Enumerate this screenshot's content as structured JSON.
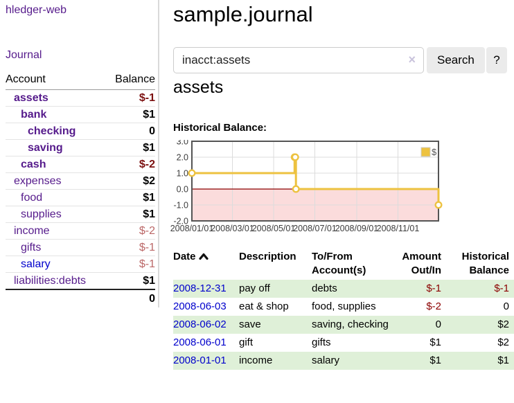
{
  "app": {
    "title": "hledger-web",
    "nav_journal_label": "Journal"
  },
  "sidebar": {
    "table_headers": {
      "account": "Account",
      "balance": "Balance"
    },
    "accounts": [
      {
        "name": "assets",
        "depth": 0,
        "balance": "$-1",
        "bold": true,
        "negative": true
      },
      {
        "name": "bank",
        "depth": 1,
        "balance": "$1",
        "bold": true
      },
      {
        "name": "checking",
        "depth": 2,
        "balance": "0",
        "bold": true
      },
      {
        "name": "saving",
        "depth": 2,
        "balance": "$1",
        "bold": true
      },
      {
        "name": "cash",
        "depth": 1,
        "balance": "$-2",
        "bold": true,
        "negative": true
      },
      {
        "name": "expenses",
        "depth": 0,
        "balance": "$2"
      },
      {
        "name": "food",
        "depth": 1,
        "balance": "$1"
      },
      {
        "name": "supplies",
        "depth": 1,
        "balance": "$1"
      },
      {
        "name": "income",
        "depth": 0,
        "balance": "$-2",
        "soft_negative": true
      },
      {
        "name": "gifts",
        "depth": 1,
        "balance": "$-1",
        "soft_negative": true
      },
      {
        "name": "salary",
        "depth": 1,
        "balance": "$-1",
        "soft_negative": true,
        "blue_link": true
      },
      {
        "name": "liabilities:debts",
        "depth": 0,
        "balance": "$1"
      }
    ],
    "total_balance": "0"
  },
  "header": {
    "title": "sample.journal"
  },
  "search": {
    "value": "inacct:assets",
    "clear_icon": "×",
    "button_label": "Search",
    "help_label": "?"
  },
  "account_page": {
    "heading": "assets",
    "chart_title": "Historical Balance:"
  },
  "chart_data": {
    "type": "line",
    "step": true,
    "title": "Historical Balance",
    "series": [
      {
        "name": "$",
        "color": "#edc240",
        "x": [
          "2008-01-01",
          "2008-06-01",
          "2008-06-02",
          "2008-06-03",
          "2008-12-31"
        ],
        "y": [
          1,
          2,
          2,
          0,
          -1
        ]
      }
    ],
    "ylim": [
      -2,
      3
    ],
    "yticks": [
      3.0,
      2.0,
      1.0,
      0.0,
      -1.0,
      -2.0
    ],
    "xticks": [
      "2008/01/01",
      "2008/03/01",
      "2008/05/01",
      "2008/07/01",
      "2008/09/01",
      "2008/11/01"
    ],
    "grid": true,
    "legend_position": "top-right",
    "zero_line_color": "#8b0000",
    "negative_region_fill": "#fbdcdc",
    "border_color": "#545454",
    "grid_color": "#dcdcdc",
    "tick_label_color": "#3c3c3c"
  },
  "register": {
    "columns": [
      {
        "label": "Date",
        "sorted": "ascending"
      },
      {
        "label": "Description"
      },
      {
        "label": "To/From Account(s)"
      },
      {
        "label": "Amount Out/In",
        "align": "right"
      },
      {
        "label": "Historical Balance",
        "align": "right"
      }
    ],
    "rows": [
      {
        "date": "2008-12-31",
        "description": "pay off",
        "accounts": [
          "debts"
        ],
        "amount": "$-1",
        "amount_negative": true,
        "balance": "$-1",
        "balance_negative": true
      },
      {
        "date": "2008-06-03",
        "description": "eat & shop",
        "accounts": [
          "food",
          "supplies"
        ],
        "amount": "$-2",
        "amount_negative": true,
        "balance": "0"
      },
      {
        "date": "2008-06-02",
        "description": "save",
        "accounts": [
          "saving",
          "checking"
        ],
        "amount": "0",
        "balance": "$2"
      },
      {
        "date": "2008-06-01",
        "description": "gift",
        "accounts": [
          "gifts"
        ],
        "amount": "$1",
        "balance": "$2"
      },
      {
        "date": "2008-01-01",
        "description": "income",
        "accounts": [
          "salary"
        ],
        "amount": "$1",
        "balance": "$1"
      }
    ]
  },
  "colors": {
    "link_purple": "#551a8b",
    "link_blue": "#0000cc",
    "negative_strong": "#7b0f0f",
    "negative_soft": "#bb6767",
    "negative_table": "#8b0000",
    "row_stripe_green": "#dff0d8",
    "chart_line_yellow": "#edc240",
    "chart_negative_region": "#fbdcdc",
    "chart_zero_line": "#8b0000"
  }
}
